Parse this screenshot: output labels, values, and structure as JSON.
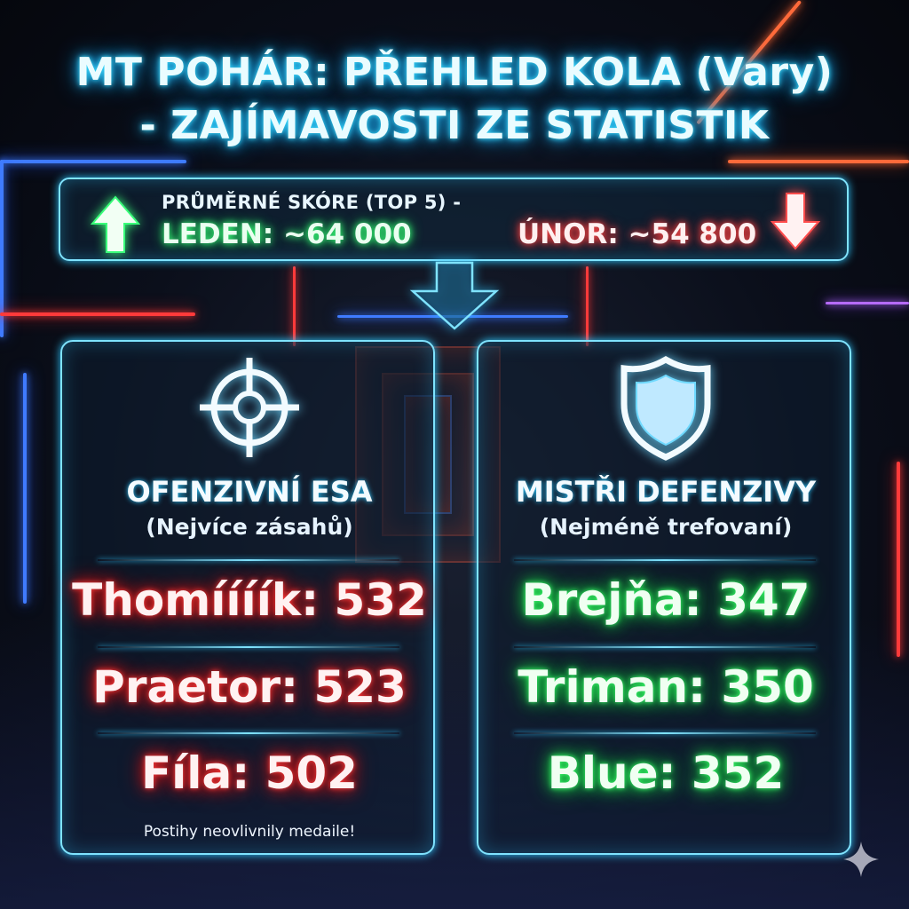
{
  "title": {
    "line1": "MT POHÁR: PŘEHLED KOLA (Vary)",
    "line2": "- ZAJÍMAVOSTI ZE STATISTIK"
  },
  "score_banner": {
    "label": "PRŮMĚRNÉ SKÓRE (TOP 5) -",
    "january": "LEDEN: ~64 000",
    "february": "ÚNOR: ~54 800",
    "up_icon": "arrow-up-icon",
    "down_icon": "arrow-down-icon"
  },
  "offense": {
    "icon": "crosshair-icon",
    "heading": "OFENZIVNÍ ESA",
    "subheading": "(Nejvíce zásahů)",
    "stats": [
      "Thomíííík: 532",
      "Praetor: 523",
      "Fíla: 502"
    ],
    "footnote": "Postihy neovlivnily medaile!"
  },
  "defense": {
    "icon": "shield-icon",
    "heading": "MISTŘI DEFENZIVY",
    "subheading": "(Nejméně trefovaní)",
    "stats": [
      "Brejňa: 347",
      "Triman: 350",
      "Blue: 352"
    ]
  },
  "colors": {
    "neon_cyan": "#7fe3ff",
    "neon_red": "#ff3d3d",
    "neon_green": "#3dff6e"
  }
}
